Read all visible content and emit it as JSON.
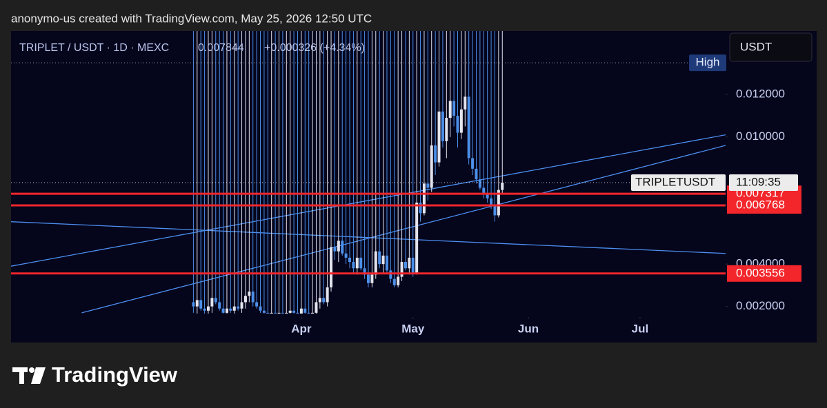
{
  "header": {
    "credit": "anonymo-us created with TradingView.com, May 25, 2026 12:50 UTC",
    "symbol": "TRIPLET / USDT · 1D · MEXC",
    "price": "0.007844",
    "change": "+0.000326 (+4.34%)"
  },
  "currency_button": "USDT",
  "brand": "TradingView",
  "chart_data": {
    "type": "candlestick",
    "x": [
      61,
      62,
      63,
      64,
      65,
      66,
      67,
      68,
      69,
      70,
      71,
      72,
      73,
      74,
      75,
      76,
      77,
      78,
      79,
      80,
      81,
      82,
      83,
      84,
      85,
      86,
      87,
      88,
      89,
      90,
      91,
      92,
      93,
      94,
      95,
      96,
      97,
      98,
      99,
      100,
      101,
      102,
      103,
      104,
      105,
      106,
      107,
      108,
      109,
      110,
      111,
      112,
      113,
      114,
      115,
      116,
      117,
      118,
      119,
      120,
      121,
      122,
      123,
      124,
      125,
      126,
      127,
      128,
      129,
      130,
      131,
      132,
      133,
      134,
      135,
      136,
      137,
      138,
      139,
      140,
      141,
      142,
      143,
      144
    ],
    "open": [
      0.0022,
      0.002,
      0.0023,
      0.0019,
      0.0018,
      0.002,
      0.0024,
      0.0022,
      0.0019,
      0.0017,
      0.0019,
      0.0018,
      0.002,
      0.0019,
      0.0022,
      0.0025,
      0.0027,
      0.0022,
      0.002,
      0.0018,
      0.0017,
      0.0016,
      0.0017,
      0.0016,
      0.0017,
      0.0016,
      0.0017,
      0.0018,
      0.0017,
      0.0016,
      0.0019,
      0.0017,
      0.0016,
      0.0017,
      0.0022,
      0.0024,
      0.0022,
      0.0029,
      0.0048,
      0.0046,
      0.0051,
      0.0045,
      0.0043,
      0.0041,
      0.0038,
      0.0043,
      0.0038,
      0.0035,
      0.0031,
      0.0035,
      0.0046,
      0.004,
      0.0044,
      0.0037,
      0.0033,
      0.003,
      0.0034,
      0.0041,
      0.0038,
      0.0043,
      0.0036,
      0.0069,
      0.0064,
      0.0078,
      0.0076,
      0.0096,
      0.0088,
      0.0112,
      0.0098,
      0.0109,
      0.0117,
      0.011,
      0.0102,
      0.0113,
      0.0119,
      0.009,
      0.0085,
      0.008,
      0.0076,
      0.0073,
      0.0071,
      0.0068,
      0.0063,
      0.0075
    ],
    "high": {
      "value": 0.0135,
      "label": "High"
    },
    "low": [
      0.0017,
      0.0016,
      0.0018,
      0.0016,
      0.0015,
      0.0017,
      0.0021,
      0.0018,
      0.0016,
      0.0015,
      0.0017,
      0.0016,
      0.0018,
      0.0017,
      0.0019,
      0.0022,
      0.002,
      0.0019,
      0.0017,
      0.0015,
      0.0015,
      0.0015,
      0.0015,
      0.0015,
      0.0015,
      0.0015,
      0.0015,
      0.0016,
      0.0015,
      0.0015,
      0.0016,
      0.0015,
      0.0015,
      0.0016,
      0.0019,
      0.0021,
      0.002,
      0.0027,
      0.0042,
      0.0041,
      0.0044,
      0.004,
      0.0038,
      0.0036,
      0.0035,
      0.0037,
      0.0033,
      0.0029,
      0.0029,
      0.0033,
      0.0038,
      0.0036,
      0.0036,
      0.0031,
      0.0029,
      0.0029,
      0.0032,
      0.0037,
      0.0035,
      0.0034,
      0.0035,
      0.006,
      0.0063,
      0.007,
      0.0074,
      0.0082,
      0.0086,
      0.0095,
      0.009,
      0.01,
      0.0105,
      0.0095,
      0.0099,
      0.0105,
      0.0087,
      0.0082,
      0.0078,
      0.0075,
      0.0071,
      0.0069,
      0.0066,
      0.006,
      0.0062,
      0.0073
    ],
    "close": [
      0.002,
      0.0023,
      0.0019,
      0.0018,
      0.002,
      0.0024,
      0.0022,
      0.0019,
      0.0017,
      0.0019,
      0.0018,
      0.002,
      0.0019,
      0.0022,
      0.0025,
      0.0027,
      0.0022,
      0.002,
      0.0018,
      0.0017,
      0.0016,
      0.0017,
      0.0016,
      0.0017,
      0.0016,
      0.0017,
      0.0018,
      0.0017,
      0.0016,
      0.0019,
      0.0017,
      0.0016,
      0.0017,
      0.0022,
      0.0024,
      0.0022,
      0.0029,
      0.0048,
      0.0046,
      0.0051,
      0.0045,
      0.0043,
      0.0041,
      0.0038,
      0.0043,
      0.0038,
      0.0035,
      0.0031,
      0.0035,
      0.0046,
      0.004,
      0.0044,
      0.0037,
      0.0033,
      0.003,
      0.0034,
      0.0041,
      0.0038,
      0.0043,
      0.0036,
      0.0069,
      0.0064,
      0.0078,
      0.0076,
      0.0096,
      0.0088,
      0.0112,
      0.0098,
      0.0109,
      0.0117,
      0.011,
      0.0102,
      0.0113,
      0.0119,
      0.009,
      0.0085,
      0.008,
      0.0076,
      0.0073,
      0.0071,
      0.0068,
      0.0063,
      0.0075,
      0.007844
    ],
    "up_color": "#e4e4ee",
    "down_color": "#4c8fe8",
    "xlim": [
      12,
      204
    ],
    "xticks": [
      {
        "value": 90,
        "label": "Apr"
      },
      {
        "value": 120,
        "label": "May"
      },
      {
        "value": 151,
        "label": "Jun"
      },
      {
        "value": 181,
        "label": "Jul"
      }
    ],
    "ylim": [
      0.0015,
      0.015
    ],
    "yticks": [
      {
        "value": 0.002,
        "label": "0.002000"
      },
      {
        "value": 0.004,
        "label": "0.004000"
      },
      {
        "value": 0.01,
        "label": "0.010000"
      },
      {
        "value": 0.012,
        "label": "0.012000"
      }
    ],
    "trendlines": [
      {
        "x": [
          12,
          204
        ],
        "y": [
          0.0039,
          0.0101
        ]
      },
      {
        "x": [
          31,
          204
        ],
        "y": [
          0.0017,
          0.0096
        ]
      },
      {
        "x": [
          12,
          204
        ],
        "y": [
          0.006,
          0.0045
        ]
      }
    ],
    "trendline_color": "#4c8ff0",
    "levels": [
      0.007317,
      0.006768,
      0.003556
    ],
    "level_color": "#f2262b",
    "current_price": 0.007844,
    "current_label": "TRIPLETUSDT",
    "countdown": "11:09:35"
  }
}
